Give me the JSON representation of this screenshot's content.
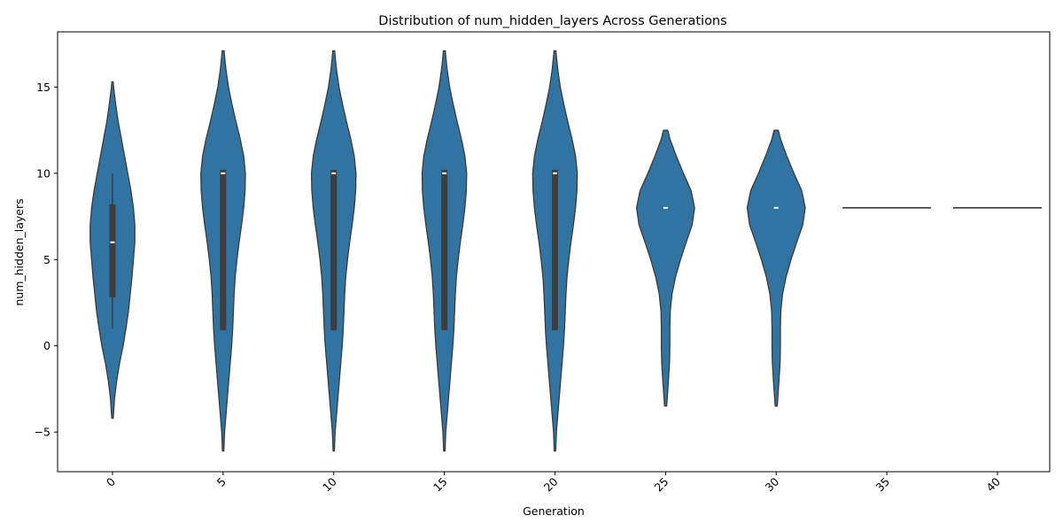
{
  "chart_data": {
    "type": "violin",
    "title": "Distribution of num_hidden_layers Across Generations",
    "xlabel": "Generation",
    "ylabel": "num_hidden_layers",
    "categories": [
      "0",
      "5",
      "10",
      "15",
      "20",
      "25",
      "30",
      "35",
      "40"
    ],
    "ylim": [
      -7.3,
      18.2
    ],
    "y_ticks": [
      -5,
      0,
      5,
      10,
      15
    ],
    "y_tick_labels": [
      "−5",
      "0",
      "5",
      "10",
      "15"
    ],
    "x_tick_rotation": 45,
    "color": "#3274a1",
    "edge_color": "#3a3a3a",
    "box_color": "#3d3d3d",
    "median_color": "#ffffff",
    "violins": [
      {
        "generation": "0",
        "extent": [
          -4.2,
          15.3
        ],
        "q1": 2.8,
        "median": 6,
        "q3": 8.2,
        "whisker": [
          1,
          10
        ],
        "density": [
          [
            -4.2,
            0.02
          ],
          [
            -3,
            0.06
          ],
          [
            -2,
            0.12
          ],
          [
            -1,
            0.2
          ],
          [
            0,
            0.3
          ],
          [
            1,
            0.38
          ],
          [
            2,
            0.45
          ],
          [
            3,
            0.5
          ],
          [
            4,
            0.55
          ],
          [
            5,
            0.59
          ],
          [
            6,
            0.63
          ],
          [
            7,
            0.63
          ],
          [
            8,
            0.59
          ],
          [
            9,
            0.52
          ],
          [
            10,
            0.43
          ],
          [
            11,
            0.34
          ],
          [
            12,
            0.25
          ],
          [
            13,
            0.16
          ],
          [
            14,
            0.09
          ],
          [
            15,
            0.03
          ],
          [
            15.3,
            0.02
          ]
        ]
      },
      {
        "generation": "5",
        "extent": [
          -6.1,
          17.1
        ],
        "q1": 0.9,
        "median": 10,
        "q3": 10.2,
        "whisker": [
          0.9,
          10.2
        ],
        "density": [
          [
            -6.1,
            0.02
          ],
          [
            -5,
            0.04
          ],
          [
            -4,
            0.08
          ],
          [
            -3,
            0.12
          ],
          [
            -2,
            0.16
          ],
          [
            -1,
            0.2
          ],
          [
            0,
            0.24
          ],
          [
            1,
            0.27
          ],
          [
            2,
            0.29
          ],
          [
            3,
            0.31
          ],
          [
            4,
            0.34
          ],
          [
            5,
            0.39
          ],
          [
            6,
            0.45
          ],
          [
            7,
            0.52
          ],
          [
            8,
            0.58
          ],
          [
            9,
            0.62
          ],
          [
            10,
            0.63
          ],
          [
            11,
            0.58
          ],
          [
            12,
            0.48
          ],
          [
            13,
            0.36
          ],
          [
            14,
            0.25
          ],
          [
            15,
            0.15
          ],
          [
            16,
            0.08
          ],
          [
            17,
            0.03
          ],
          [
            17.1,
            0.03
          ]
        ]
      },
      {
        "generation": "10",
        "extent": [
          -6.1,
          17.1
        ],
        "q1": 0.9,
        "median": 10,
        "q3": 10.2,
        "whisker": [
          0.9,
          10.2
        ],
        "density": [
          [
            -6.1,
            0.02
          ],
          [
            -5,
            0.04
          ],
          [
            -4,
            0.08
          ],
          [
            -3,
            0.12
          ],
          [
            -2,
            0.16
          ],
          [
            -1,
            0.2
          ],
          [
            0,
            0.24
          ],
          [
            1,
            0.27
          ],
          [
            2,
            0.29
          ],
          [
            3,
            0.31
          ],
          [
            4,
            0.34
          ],
          [
            5,
            0.39
          ],
          [
            6,
            0.45
          ],
          [
            7,
            0.52
          ],
          [
            8,
            0.58
          ],
          [
            9,
            0.62
          ],
          [
            10,
            0.63
          ],
          [
            11,
            0.58
          ],
          [
            12,
            0.48
          ],
          [
            13,
            0.36
          ],
          [
            14,
            0.25
          ],
          [
            15,
            0.15
          ],
          [
            16,
            0.08
          ],
          [
            17,
            0.03
          ],
          [
            17.1,
            0.03
          ]
        ]
      },
      {
        "generation": "15",
        "extent": [
          -6.1,
          17.1
        ],
        "q1": 0.9,
        "median": 10,
        "q3": 10.2,
        "whisker": [
          0.9,
          10.2
        ],
        "density": [
          [
            -6.1,
            0.02
          ],
          [
            -5,
            0.04
          ],
          [
            -4,
            0.08
          ],
          [
            -3,
            0.12
          ],
          [
            -2,
            0.16
          ],
          [
            -1,
            0.2
          ],
          [
            0,
            0.24
          ],
          [
            1,
            0.27
          ],
          [
            2,
            0.29
          ],
          [
            3,
            0.31
          ],
          [
            4,
            0.34
          ],
          [
            5,
            0.39
          ],
          [
            6,
            0.45
          ],
          [
            7,
            0.52
          ],
          [
            8,
            0.58
          ],
          [
            9,
            0.62
          ],
          [
            10,
            0.63
          ],
          [
            11,
            0.58
          ],
          [
            12,
            0.48
          ],
          [
            13,
            0.36
          ],
          [
            14,
            0.25
          ],
          [
            15,
            0.15
          ],
          [
            16,
            0.08
          ],
          [
            17,
            0.03
          ],
          [
            17.1,
            0.03
          ]
        ]
      },
      {
        "generation": "20",
        "extent": [
          -6.1,
          17.1
        ],
        "q1": 0.9,
        "median": 10,
        "q3": 10.2,
        "whisker": [
          0.9,
          10.2
        ],
        "density": [
          [
            -6.1,
            0.02
          ],
          [
            -5,
            0.04
          ],
          [
            -4,
            0.08
          ],
          [
            -3,
            0.12
          ],
          [
            -2,
            0.16
          ],
          [
            -1,
            0.2
          ],
          [
            0,
            0.24
          ],
          [
            1,
            0.27
          ],
          [
            2,
            0.29
          ],
          [
            3,
            0.31
          ],
          [
            4,
            0.34
          ],
          [
            5,
            0.39
          ],
          [
            6,
            0.45
          ],
          [
            7,
            0.52
          ],
          [
            8,
            0.58
          ],
          [
            9,
            0.62
          ],
          [
            10,
            0.63
          ],
          [
            11,
            0.58
          ],
          [
            12,
            0.48
          ],
          [
            13,
            0.36
          ],
          [
            14,
            0.25
          ],
          [
            15,
            0.15
          ],
          [
            16,
            0.08
          ],
          [
            17,
            0.03
          ],
          [
            17.1,
            0.03
          ]
        ]
      },
      {
        "generation": "25",
        "extent": [
          -3.5,
          12.5
        ],
        "q1": 8,
        "median": 8,
        "q3": 8,
        "whisker": [
          8,
          8
        ],
        "density": [
          [
            -3.5,
            0.03
          ],
          [
            -2,
            0.08
          ],
          [
            -1,
            0.11
          ],
          [
            0,
            0.12
          ],
          [
            1,
            0.12
          ],
          [
            2,
            0.13
          ],
          [
            3,
            0.18
          ],
          [
            4,
            0.28
          ],
          [
            5,
            0.42
          ],
          [
            6,
            0.58
          ],
          [
            7,
            0.75
          ],
          [
            8,
            0.82
          ],
          [
            9,
            0.72
          ],
          [
            10,
            0.5
          ],
          [
            11,
            0.3
          ],
          [
            12,
            0.12
          ],
          [
            12.5,
            0.06
          ]
        ]
      },
      {
        "generation": "30",
        "extent": [
          -3.5,
          12.5
        ],
        "q1": 8,
        "median": 8,
        "q3": 8,
        "whisker": [
          8,
          8
        ],
        "density": [
          [
            -3.5,
            0.03
          ],
          [
            -2,
            0.08
          ],
          [
            -1,
            0.11
          ],
          [
            0,
            0.12
          ],
          [
            1,
            0.12
          ],
          [
            2,
            0.13
          ],
          [
            3,
            0.18
          ],
          [
            4,
            0.28
          ],
          [
            5,
            0.42
          ],
          [
            6,
            0.58
          ],
          [
            7,
            0.75
          ],
          [
            8,
            0.82
          ],
          [
            9,
            0.72
          ],
          [
            10,
            0.5
          ],
          [
            11,
            0.3
          ],
          [
            12,
            0.12
          ],
          [
            12.5,
            0.06
          ]
        ]
      },
      {
        "generation": "35",
        "extent": [
          8,
          8
        ],
        "q1": 8,
        "median": 8,
        "q3": 8,
        "whisker": [
          8,
          8
        ],
        "density": [],
        "line_value": 8
      },
      {
        "generation": "40",
        "extent": [
          8,
          8
        ],
        "q1": 8,
        "median": 8,
        "q3": 8,
        "whisker": [
          8,
          8
        ],
        "density": [],
        "line_value": 8
      }
    ]
  }
}
